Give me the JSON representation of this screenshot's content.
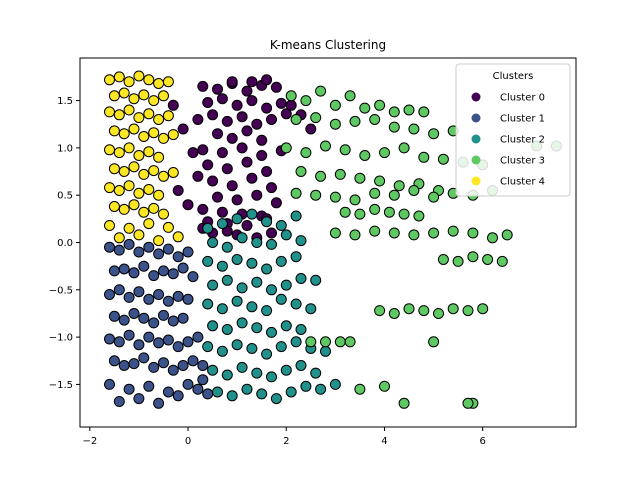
{
  "chart_data": {
    "type": "scatter",
    "title": "K-means Clustering",
    "xlabel": "",
    "ylabel": "",
    "xlim": [
      -2.2,
      7.9
    ],
    "ylim": [
      -1.95,
      1.95
    ],
    "x_ticks": [
      -2,
      0,
      2,
      4,
      6
    ],
    "y_ticks": [
      -1.5,
      -1.0,
      -0.5,
      0.0,
      0.5,
      1.0,
      1.5
    ],
    "x_tick_labels": [
      "−2",
      "0",
      "2",
      "4",
      "6"
    ],
    "y_tick_labels": [
      "−1.5",
      "−1.0",
      "−0.5",
      "0.0",
      "0.5",
      "1.0",
      "1.5"
    ],
    "grid": false,
    "legend": {
      "title": "Clusters",
      "position": "top-right"
    },
    "series": [
      {
        "name": "Cluster 0",
        "color": "#440154",
        "x": [
          0.3,
          0.6,
          0.9,
          1.2,
          1.5,
          1.8,
          0.4,
          0.7,
          1.0,
          1.3,
          1.6,
          1.9,
          0.2,
          0.5,
          0.8,
          1.1,
          1.4,
          1.7,
          2.0,
          0.6,
          0.9,
          1.2,
          1.5,
          0.3,
          0.7,
          1.1,
          1.5,
          1.9,
          0.4,
          0.8,
          1.2,
          1.6,
          0.5,
          0.9,
          1.3,
          1.7,
          0.6,
          1.0,
          1.4,
          1.8,
          0.3,
          0.7,
          1.1,
          1.5,
          0.4,
          0.8,
          1.2,
          1.6,
          -0.3,
          -0.1,
          0.1,
          0.2,
          -0.2,
          0.0,
          0.3,
          0.5,
          0.8,
          1.0,
          1.4,
          1.7,
          2.1,
          2.3,
          2.5,
          1.3,
          1.6,
          0.9
        ],
        "y": [
          1.65,
          1.62,
          1.68,
          1.6,
          1.66,
          1.64,
          1.48,
          1.52,
          1.45,
          1.5,
          1.42,
          1.47,
          1.3,
          1.35,
          1.28,
          1.33,
          1.25,
          1.3,
          1.36,
          1.15,
          1.1,
          1.18,
          1.08,
          0.98,
          0.95,
          1.0,
          0.92,
          0.97,
          0.82,
          0.78,
          0.85,
          0.75,
          0.65,
          0.6,
          0.68,
          0.58,
          0.48,
          0.45,
          0.5,
          0.42,
          0.35,
          0.32,
          0.3,
          0.28,
          0.22,
          0.2,
          0.18,
          0.25,
          1.45,
          1.2,
          0.95,
          0.7,
          0.55,
          0.4,
          0.15,
          0.1,
          0.12,
          0.08,
          0.05,
          0.1,
          1.45,
          1.35,
          1.2,
          1.7,
          1.72,
          1.7
        ]
      },
      {
        "name": "Cluster 1",
        "color": "#3b528b",
        "x": [
          -1.6,
          -1.4,
          -1.2,
          -1.0,
          -0.8,
          -0.6,
          -0.4,
          -0.2,
          0.0,
          -1.5,
          -1.3,
          -1.1,
          -0.9,
          -0.7,
          -0.5,
          -0.3,
          -0.1,
          0.1,
          -1.6,
          -1.4,
          -1.2,
          -1.0,
          -0.8,
          -0.6,
          -0.4,
          -0.2,
          0.0,
          -1.5,
          -1.3,
          -1.1,
          -0.9,
          -0.7,
          -0.5,
          -0.3,
          -0.1,
          -1.6,
          -1.4,
          -1.2,
          -1.0,
          -0.8,
          -0.6,
          -0.4,
          -0.2,
          0.0,
          0.2,
          -1.5,
          -1.3,
          -1.1,
          -0.9,
          -0.7,
          -0.5,
          -0.3,
          -0.1,
          0.1,
          0.3,
          -1.6,
          -1.2,
          -0.8,
          -0.4,
          0.0,
          -1.4,
          -1.0,
          -0.6,
          -0.2,
          0.2,
          0.3,
          0.4
        ],
        "y": [
          -0.05,
          -0.08,
          -0.02,
          -0.1,
          -0.05,
          -0.12,
          -0.07,
          -0.15,
          -0.1,
          -0.3,
          -0.28,
          -0.32,
          -0.25,
          -0.35,
          -0.3,
          -0.33,
          -0.27,
          -0.36,
          -0.55,
          -0.5,
          -0.58,
          -0.52,
          -0.6,
          -0.55,
          -0.62,
          -0.57,
          -0.6,
          -0.78,
          -0.82,
          -0.75,
          -0.8,
          -0.85,
          -0.77,
          -0.83,
          -0.8,
          -1.02,
          -1.05,
          -0.98,
          -1.08,
          -1.0,
          -1.06,
          -1.03,
          -1.1,
          -1.05,
          -1.0,
          -1.25,
          -1.3,
          -1.28,
          -1.22,
          -1.32,
          -1.27,
          -1.35,
          -1.3,
          -1.25,
          -1.3,
          -1.5,
          -1.55,
          -1.52,
          -1.58,
          -1.5,
          -1.68,
          -1.65,
          -1.7,
          -1.62,
          -1.55,
          -1.45,
          -1.6
        ]
      },
      {
        "name": "Cluster 2",
        "color": "#21918c",
        "x": [
          0.4,
          0.7,
          1.0,
          1.3,
          1.6,
          1.9,
          2.2,
          0.5,
          0.8,
          1.1,
          1.4,
          1.7,
          2.0,
          2.3,
          0.4,
          0.7,
          1.0,
          1.3,
          1.6,
          1.9,
          2.2,
          0.5,
          0.8,
          1.1,
          1.4,
          1.7,
          2.0,
          2.3,
          2.6,
          0.4,
          0.7,
          1.0,
          1.3,
          1.6,
          1.9,
          2.2,
          2.5,
          0.5,
          0.8,
          1.1,
          1.4,
          1.7,
          2.0,
          2.3,
          0.4,
          0.7,
          1.0,
          1.3,
          1.6,
          1.9,
          2.2,
          2.5,
          2.8,
          0.5,
          0.8,
          1.1,
          1.4,
          1.7,
          2.0,
          2.3,
          2.6,
          0.6,
          0.9,
          1.2,
          1.5,
          1.8,
          2.1,
          2.4,
          2.7,
          3.0
        ],
        "y": [
          0.15,
          0.2,
          0.25,
          0.3,
          0.22,
          0.18,
          0.28,
          0.0,
          -0.05,
          0.05,
          0.0,
          -0.02,
          0.08,
          0.02,
          -0.2,
          -0.25,
          -0.18,
          -0.22,
          -0.28,
          -0.2,
          -0.15,
          -0.45,
          -0.4,
          -0.48,
          -0.42,
          -0.5,
          -0.45,
          -0.38,
          -0.4,
          -0.65,
          -0.7,
          -0.62,
          -0.68,
          -0.72,
          -0.6,
          -0.65,
          -0.7,
          -0.88,
          -0.92,
          -0.85,
          -0.9,
          -0.95,
          -0.88,
          -0.92,
          -1.1,
          -1.15,
          -1.08,
          -1.12,
          -1.18,
          -1.1,
          -1.05,
          -1.12,
          -1.15,
          -1.35,
          -1.4,
          -1.32,
          -1.38,
          -1.42,
          -1.35,
          -1.3,
          -1.38,
          -1.58,
          -1.62,
          -1.55,
          -1.6,
          -1.65,
          -1.58,
          -1.52,
          -1.55,
          -1.5
        ]
      },
      {
        "name": "Cluster 3",
        "color": "#5ec962",
        "x": [
          2.1,
          2.4,
          2.7,
          3.0,
          3.3,
          3.6,
          3.9,
          4.2,
          4.5,
          4.8,
          2.2,
          2.6,
          3.0,
          3.4,
          3.8,
          4.2,
          4.6,
          5.0,
          5.4,
          2.0,
          2.4,
          2.8,
          3.2,
          3.6,
          4.0,
          4.4,
          4.8,
          5.2,
          5.6,
          6.0,
          2.3,
          2.7,
          3.1,
          3.5,
          3.9,
          4.3,
          4.7,
          5.1,
          2.2,
          2.6,
          3.0,
          3.4,
          3.8,
          4.2,
          4.6,
          5.0,
          5.4,
          5.8,
          6.2,
          3.2,
          3.5,
          3.8,
          4.1,
          4.4,
          4.7,
          3.0,
          3.4,
          3.8,
          4.2,
          4.6,
          5.0,
          5.4,
          5.8,
          6.2,
          6.5,
          5.2,
          5.5,
          5.8,
          6.1,
          6.4,
          3.9,
          4.2,
          4.5,
          4.8,
          5.1,
          5.4,
          5.7,
          6.0,
          2.5,
          2.8,
          3.1,
          3.3,
          4.4,
          5.8,
          5.7,
          7.1,
          7.5,
          5.0,
          4.0,
          3.5
        ],
        "y": [
          1.55,
          1.5,
          1.6,
          1.45,
          1.55,
          1.42,
          1.45,
          1.38,
          1.4,
          1.38,
          1.3,
          1.32,
          1.25,
          1.28,
          1.3,
          1.22,
          1.2,
          1.15,
          1.18,
          1.0,
          0.95,
          1.02,
          0.98,
          0.92,
          0.95,
          1.0,
          0.9,
          0.88,
          0.85,
          0.82,
          0.75,
          0.7,
          0.72,
          0.68,
          0.65,
          0.6,
          0.62,
          0.55,
          0.52,
          0.5,
          0.48,
          0.45,
          0.52,
          0.5,
          0.55,
          0.48,
          0.52,
          0.5,
          0.55,
          0.32,
          0.3,
          0.35,
          0.32,
          0.3,
          0.28,
          0.1,
          0.08,
          0.12,
          0.1,
          0.08,
          0.1,
          0.12,
          0.1,
          0.05,
          0.08,
          -0.18,
          -0.2,
          -0.15,
          -0.18,
          -0.2,
          -0.72,
          -0.75,
          -0.7,
          -0.72,
          -0.75,
          -0.7,
          -0.72,
          -0.7,
          -1.05,
          -1.05,
          -1.05,
          -1.05,
          -1.7,
          -1.7,
          -1.7,
          1.02,
          1.02,
          -1.05,
          -1.52,
          -1.55
        ]
      },
      {
        "name": "Cluster 4",
        "color": "#fde725",
        "x": [
          -1.6,
          -1.4,
          -1.2,
          -1.0,
          -0.8,
          -0.6,
          -0.4,
          -1.5,
          -1.3,
          -1.1,
          -0.9,
          -0.7,
          -0.5,
          -1.6,
          -1.4,
          -1.2,
          -1.0,
          -0.8,
          -0.6,
          -0.4,
          -1.5,
          -1.3,
          -1.1,
          -0.9,
          -0.7,
          -0.5,
          -0.3,
          -1.6,
          -1.4,
          -1.2,
          -1.0,
          -0.8,
          -0.6,
          -1.5,
          -1.3,
          -1.1,
          -0.9,
          -0.7,
          -0.5,
          -0.3,
          -1.6,
          -1.4,
          -1.2,
          -1.0,
          -0.8,
          -0.6,
          -1.5,
          -1.3,
          -1.1,
          -0.9,
          -0.7,
          -0.5,
          -1.6,
          -1.2,
          -0.8,
          -0.4,
          -1.4,
          -1.0,
          -0.6,
          -0.2
        ],
        "y": [
          1.72,
          1.75,
          1.7,
          1.76,
          1.72,
          1.68,
          1.7,
          1.55,
          1.58,
          1.52,
          1.56,
          1.5,
          1.55,
          1.38,
          1.35,
          1.4,
          1.32,
          1.36,
          1.3,
          1.34,
          1.18,
          1.15,
          1.2,
          1.12,
          1.16,
          1.1,
          1.14,
          0.98,
          0.95,
          1.0,
          0.92,
          0.96,
          0.9,
          0.78,
          0.75,
          0.8,
          0.72,
          0.76,
          0.7,
          0.74,
          0.58,
          0.55,
          0.6,
          0.52,
          0.56,
          0.5,
          0.38,
          0.35,
          0.4,
          0.32,
          0.36,
          0.3,
          0.18,
          0.15,
          0.2,
          0.16,
          0.05,
          0.08,
          0.02,
          0.06
        ]
      }
    ]
  }
}
